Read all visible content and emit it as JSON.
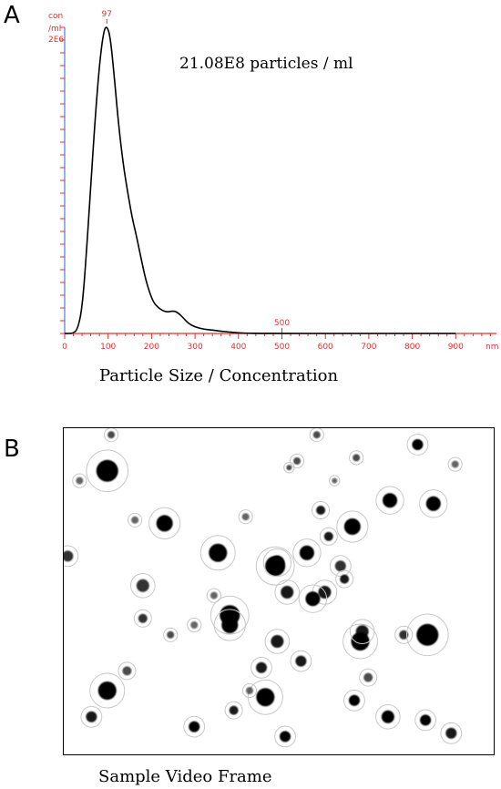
{
  "panels": {
    "a": {
      "letter": "A",
      "caption": "Particle Size / Concentration"
    },
    "b": {
      "letter": "B",
      "caption": "Sample Video Frame"
    }
  },
  "colors": {
    "axis": "#e03030",
    "yaxis_line": "#3060d0",
    "curve": "#000000"
  },
  "chart_data": {
    "type": "line",
    "annotation": "21.08E8 particles / ml",
    "ylabel": [
      "con",
      "/ml",
      "2E6"
    ],
    "xlabel_unit": "nm",
    "xlim": [
      0,
      1000
    ],
    "ylim": [
      0,
      2000000
    ],
    "xticks": [
      "0",
      "100",
      "200",
      "300",
      "400",
      "500",
      "600",
      "700",
      "800",
      "900"
    ],
    "markers": [
      {
        "label": "97",
        "x": 97
      },
      {
        "label": "500",
        "x": 500
      }
    ],
    "series": [
      {
        "x": [
          0,
          20,
          30,
          40,
          50,
          60,
          70,
          80,
          90,
          97,
          105,
          115,
          125,
          135,
          145,
          155,
          165,
          175,
          185,
          195,
          205,
          215,
          225,
          235,
          245,
          255,
          265,
          275,
          285,
          300,
          320,
          340,
          360,
          380,
          400,
          420,
          450,
          500,
          600,
          700,
          800,
          900,
          1000
        ],
        "y": [
          0,
          0,
          30000,
          160000,
          520000,
          960000,
          1400000,
          1760000,
          1980000,
          2010000,
          1940000,
          1650000,
          1340000,
          1100000,
          920000,
          760000,
          640000,
          500000,
          370000,
          270000,
          200000,
          170000,
          150000,
          140000,
          145000,
          145000,
          125000,
          95000,
          65000,
          42000,
          28000,
          22000,
          15000,
          9000,
          4000,
          2000,
          800,
          0,
          0,
          0,
          0,
          0,
          0
        ]
      }
    ]
  },
  "frame_particles": [
    [
      0.11,
      0.13,
      12,
      1
    ],
    [
      0.255,
      0.29,
      9,
      1
    ],
    [
      0.39,
      0.38,
      10,
      1
    ],
    [
      0.535,
      0.42,
      11,
      1
    ],
    [
      0.615,
      0.38,
      8,
      1
    ],
    [
      0.565,
      0.5,
      7,
      0.9
    ],
    [
      0.66,
      0.5,
      7,
      0.9
    ],
    [
      0.54,
      0.41,
      8,
      1
    ],
    [
      0.42,
      0.57,
      11,
      1
    ],
    [
      0.42,
      0.6,
      9,
      1
    ],
    [
      0.54,
      0.65,
      7,
      0.9
    ],
    [
      0.63,
      0.52,
      8,
      1
    ],
    [
      0.7,
      0.42,
      6,
      0.8
    ],
    [
      0.73,
      0.3,
      9,
      1
    ],
    [
      0.825,
      0.22,
      8,
      1
    ],
    [
      0.935,
      0.23,
      8,
      1
    ],
    [
      0.895,
      0.05,
      6,
      1
    ],
    [
      0.65,
      0.25,
      5,
      0.9
    ],
    [
      0.67,
      0.33,
      5,
      0.9
    ],
    [
      0.71,
      0.46,
      5,
      0.9
    ],
    [
      0.75,
      0.65,
      10,
      1
    ],
    [
      0.755,
      0.62,
      7,
      0.9
    ],
    [
      0.86,
      0.63,
      5,
      0.8
    ],
    [
      0.92,
      0.63,
      12,
      1
    ],
    [
      0.6,
      0.71,
      6,
      0.9
    ],
    [
      0.5,
      0.73,
      6,
      0.9
    ],
    [
      0.51,
      0.82,
      10,
      1
    ],
    [
      0.11,
      0.8,
      10,
      1
    ],
    [
      0.07,
      0.88,
      6,
      0.9
    ],
    [
      0.33,
      0.91,
      6,
      1
    ],
    [
      0.43,
      0.86,
      5,
      0.9
    ],
    [
      0.56,
      0.94,
      6,
      1
    ],
    [
      0.735,
      0.83,
      6,
      1
    ],
    [
      0.82,
      0.88,
      7,
      1
    ],
    [
      0.915,
      0.89,
      6,
      1
    ],
    [
      0.98,
      0.93,
      6,
      0.9
    ],
    [
      0.2,
      0.48,
      7,
      0.8
    ],
    [
      0.2,
      0.58,
      5,
      0.8
    ],
    [
      0.16,
      0.74,
      5,
      0.7
    ],
    [
      0.27,
      0.63,
      4,
      0.7
    ],
    [
      0.33,
      0.6,
      4,
      0.6
    ],
    [
      0.47,
      0.8,
      4,
      0.6
    ],
    [
      0.04,
      0.16,
      4,
      0.6
    ],
    [
      0.12,
      0.02,
      4,
      0.7
    ],
    [
      0.01,
      0.39,
      6,
      0.8
    ],
    [
      0.77,
      0.76,
      5,
      0.7
    ],
    [
      0.99,
      0.11,
      4,
      0.6
    ],
    [
      0.59,
      0.1,
      4,
      0.7
    ],
    [
      0.57,
      0.12,
      3,
      0.7
    ],
    [
      0.64,
      0.02,
      4,
      0.7
    ],
    [
      0.74,
      0.09,
      4,
      0.7
    ],
    [
      0.685,
      0.16,
      3,
      0.6
    ],
    [
      0.46,
      0.27,
      4,
      0.6
    ],
    [
      0.18,
      0.28,
      4,
      0.6
    ],
    [
      0.38,
      0.51,
      4,
      0.6
    ]
  ]
}
